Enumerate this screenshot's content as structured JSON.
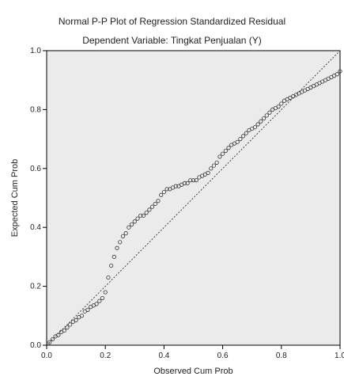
{
  "chart_data": {
    "type": "scatter",
    "title": "Normal P-P Plot of Regression Standardized Residual",
    "subtitle": "Dependent Variable: Tingkat Penjualan (Y)",
    "xlabel": "Observed Cum Prob",
    "ylabel": "Expected Cum Prob",
    "xlim": [
      0,
      1
    ],
    "ylim": [
      0,
      1
    ],
    "xticks": [
      0,
      0.2,
      0.4,
      0.6,
      0.8,
      1.0
    ],
    "yticks": [
      0,
      0.2,
      0.4,
      0.6,
      0.8,
      1.0
    ],
    "xtick_labels": [
      "0.0",
      "0.2",
      "0.4",
      "0.6",
      "0.8",
      "1.0"
    ],
    "ytick_labels": [
      "0.0",
      "0.2",
      "0.4",
      "0.6",
      "0.8",
      "1.0"
    ],
    "grid": false,
    "reference_line": {
      "from": [
        0,
        0
      ],
      "to": [
        1,
        1
      ]
    },
    "points_x": [
      0.01,
      0.02,
      0.03,
      0.04,
      0.05,
      0.06,
      0.07,
      0.08,
      0.09,
      0.1,
      0.11,
      0.12,
      0.13,
      0.14,
      0.15,
      0.16,
      0.17,
      0.18,
      0.19,
      0.2,
      0.21,
      0.22,
      0.23,
      0.24,
      0.25,
      0.26,
      0.27,
      0.28,
      0.29,
      0.3,
      0.31,
      0.32,
      0.33,
      0.34,
      0.35,
      0.36,
      0.37,
      0.38,
      0.39,
      0.4,
      0.41,
      0.42,
      0.43,
      0.44,
      0.45,
      0.46,
      0.47,
      0.48,
      0.49,
      0.5,
      0.51,
      0.52,
      0.53,
      0.54,
      0.55,
      0.56,
      0.57,
      0.58,
      0.59,
      0.6,
      0.61,
      0.62,
      0.63,
      0.64,
      0.65,
      0.66,
      0.67,
      0.68,
      0.69,
      0.7,
      0.71,
      0.72,
      0.73,
      0.74,
      0.75,
      0.76,
      0.77,
      0.78,
      0.79,
      0.8,
      0.81,
      0.82,
      0.83,
      0.84,
      0.85,
      0.86,
      0.87,
      0.88,
      0.89,
      0.9,
      0.91,
      0.92,
      0.93,
      0.94,
      0.95,
      0.96,
      0.97,
      0.98,
      0.99,
      1.0
    ],
    "points_y": [
      0.01,
      0.02,
      0.03,
      0.035,
      0.045,
      0.05,
      0.06,
      0.07,
      0.08,
      0.085,
      0.095,
      0.1,
      0.115,
      0.12,
      0.13,
      0.135,
      0.14,
      0.15,
      0.16,
      0.18,
      0.23,
      0.27,
      0.3,
      0.33,
      0.35,
      0.37,
      0.38,
      0.4,
      0.41,
      0.42,
      0.43,
      0.44,
      0.44,
      0.45,
      0.46,
      0.47,
      0.48,
      0.49,
      0.51,
      0.52,
      0.53,
      0.53,
      0.535,
      0.54,
      0.54,
      0.545,
      0.55,
      0.55,
      0.56,
      0.56,
      0.56,
      0.57,
      0.575,
      0.58,
      0.585,
      0.6,
      0.61,
      0.62,
      0.64,
      0.65,
      0.66,
      0.67,
      0.68,
      0.685,
      0.69,
      0.7,
      0.71,
      0.72,
      0.73,
      0.735,
      0.74,
      0.75,
      0.76,
      0.77,
      0.78,
      0.79,
      0.8,
      0.805,
      0.81,
      0.82,
      0.83,
      0.835,
      0.84,
      0.845,
      0.85,
      0.855,
      0.86,
      0.865,
      0.87,
      0.875,
      0.88,
      0.885,
      0.89,
      0.895,
      0.9,
      0.905,
      0.91,
      0.915,
      0.92,
      0.93
    ]
  },
  "colors": {
    "plot_background": "#ebebeb",
    "point_stroke": "#333333",
    "reference_line": "#444444",
    "axis": "#000000"
  }
}
